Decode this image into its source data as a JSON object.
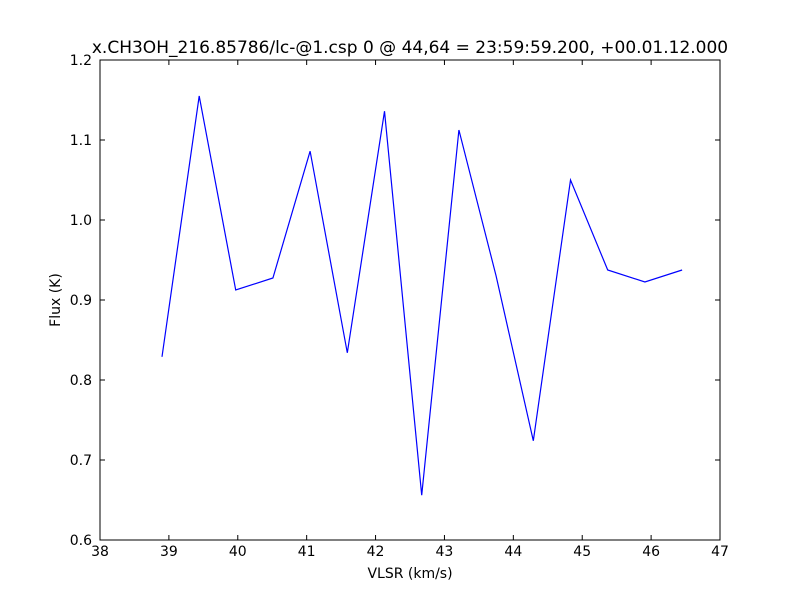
{
  "chart_data": {
    "type": "line",
    "title": "x.CH3OH_216.85786/lc-@1.csp 0 @ 44,64 = 23:59:59.200, +00.01.12.000",
    "x_label": "VLSR (km/s)",
    "y_label": "Flux (K)",
    "x": [
      38.9,
      39.44,
      39.97,
      40.51,
      41.05,
      41.59,
      42.13,
      42.67,
      43.21,
      43.75,
      44.29,
      44.83,
      45.37,
      45.91,
      46.45
    ],
    "series": [
      {
        "color": "#0000ff",
        "values": [
          0.829,
          1.155,
          0.9125,
          0.9275,
          1.086,
          0.834,
          1.136,
          0.656,
          1.1125,
          0.93,
          0.724,
          1.05,
          0.9375,
          0.9225,
          0.9375
        ]
      }
    ],
    "xlim": [
      38,
      47
    ],
    "xticks": [
      38,
      39,
      40,
      41,
      42,
      43,
      44,
      45,
      46,
      47
    ],
    "ylim": [
      0.6,
      1.2
    ],
    "yticks": [
      0.6,
      0.7,
      0.8,
      0.9,
      {
        "value": 1,
        "label": "1.0"
      },
      1.1,
      1.2
    ],
    "grid": false
  }
}
